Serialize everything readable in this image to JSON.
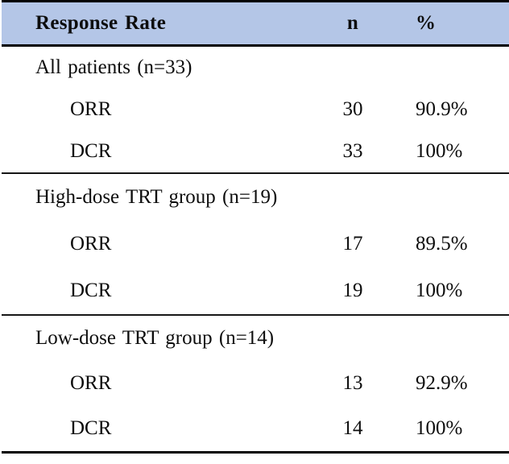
{
  "colors": {
    "header_bg": "#b4c6e7",
    "outer_border": "#000000",
    "section_divider": "#161616",
    "text": "#0d0d0d"
  },
  "table": {
    "header": {
      "label": "Response Rate",
      "n": "n",
      "pct": "%"
    },
    "sections": [
      {
        "title": "All patients (n=33)",
        "rows": [
          {
            "label": "ORR",
            "n": "30",
            "pct": "90.9%"
          },
          {
            "label": "DCR",
            "n": "33",
            "pct": "100%"
          }
        ]
      },
      {
        "title": "High-dose TRT group (n=19)",
        "rows": [
          {
            "label": "ORR",
            "n": "17",
            "pct": "89.5%"
          },
          {
            "label": "DCR",
            "n": "19",
            "pct": "100%"
          }
        ]
      },
      {
        "title": "Low-dose TRT group (n=14)",
        "rows": [
          {
            "label": "ORR",
            "n": "13",
            "pct": "92.9%"
          },
          {
            "label": "DCR",
            "n": "14",
            "pct": "100%"
          }
        ]
      }
    ]
  },
  "chart_data": {
    "type": "table",
    "title": "Response Rate",
    "columns": [
      "Response Rate",
      "n",
      "%"
    ],
    "groups": [
      {
        "group": "All patients",
        "group_n": 33,
        "rows": [
          {
            "measure": "ORR",
            "n": 30,
            "percent": 90.9
          },
          {
            "measure": "DCR",
            "n": 33,
            "percent": 100
          }
        ]
      },
      {
        "group": "High-dose TRT group",
        "group_n": 19,
        "rows": [
          {
            "measure": "ORR",
            "n": 17,
            "percent": 89.5
          },
          {
            "measure": "DCR",
            "n": 19,
            "percent": 100
          }
        ]
      },
      {
        "group": "Low-dose TRT group",
        "group_n": 14,
        "rows": [
          {
            "measure": "ORR",
            "n": 13,
            "percent": 92.9
          },
          {
            "measure": "DCR",
            "n": 14,
            "percent": 100
          }
        ]
      }
    ]
  }
}
